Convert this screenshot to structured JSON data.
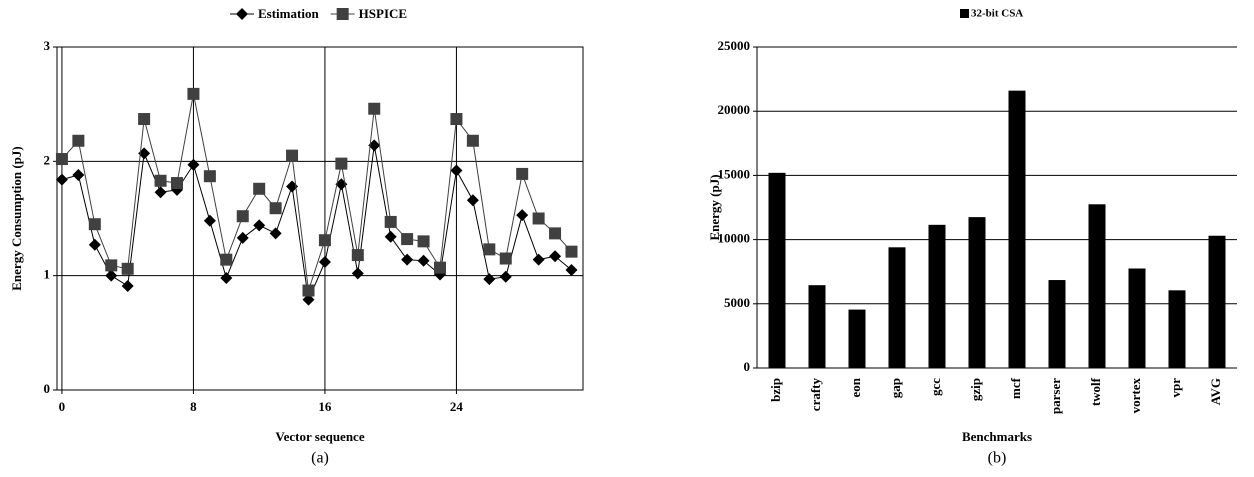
{
  "chart_data": [
    {
      "type": "line",
      "x_label": "Vector sequence",
      "y_label": "Energy Consumption (pJ)",
      "caption": "(a)",
      "x": [
        0,
        1,
        2,
        3,
        4,
        5,
        6,
        7,
        8,
        9,
        10,
        11,
        12,
        13,
        14,
        15,
        16,
        17,
        18,
        19,
        20,
        21,
        22,
        23,
        24,
        25,
        26,
        27,
        28,
        29,
        30,
        31
      ],
      "series": [
        {
          "name": "Estimation",
          "color": "#000000",
          "marker": "diamond",
          "values": [
            1.84,
            1.88,
            1.27,
            1.0,
            0.91,
            2.07,
            1.73,
            1.75,
            1.97,
            1.48,
            0.98,
            1.33,
            1.44,
            1.37,
            1.78,
            0.79,
            1.12,
            1.8,
            1.02,
            2.14,
            1.34,
            1.14,
            1.13,
            1.01,
            1.92,
            1.66,
            0.97,
            0.99,
            1.53,
            1.14,
            1.17,
            1.05
          ]
        },
        {
          "name": "HSPICE",
          "color": "#404040",
          "marker": "square",
          "values": [
            2.02,
            2.18,
            1.45,
            1.09,
            1.06,
            2.37,
            1.83,
            1.81,
            2.59,
            1.87,
            1.14,
            1.52,
            1.76,
            1.59,
            2.05,
            0.87,
            1.31,
            1.98,
            1.18,
            2.46,
            1.47,
            1.32,
            1.3,
            1.07,
            2.37,
            2.18,
            1.23,
            1.15,
            1.89,
            1.5,
            1.37,
            1.21
          ]
        }
      ],
      "xlim": [
        -0.3,
        31.7
      ],
      "xticks": [
        0,
        8,
        16,
        24
      ],
      "ylim": [
        0,
        3
      ],
      "yticks": [
        0,
        1,
        2,
        3
      ],
      "grid": "both",
      "legend": "top"
    },
    {
      "type": "bar",
      "x_label": "Benchmarks",
      "y_label": "Energy (pJ)",
      "caption": "(b)",
      "categories": [
        "bzip",
        "crafty",
        "eon",
        "gap",
        "gcc",
        "gzip",
        "mcf",
        "parser",
        "twolf",
        "vortex",
        "vpr",
        "AVG"
      ],
      "series": [
        {
          "name": "32-bit CSA",
          "color": "#000000",
          "values": [
            15200,
            6450,
            4550,
            9400,
            11150,
            11750,
            21600,
            6850,
            12750,
            7750,
            6050,
            10300
          ]
        }
      ],
      "ylim": [
        0,
        25000
      ],
      "yticks": [
        0,
        5000,
        10000,
        15000,
        20000,
        25000
      ],
      "grid": "y",
      "legend": "top"
    }
  ]
}
